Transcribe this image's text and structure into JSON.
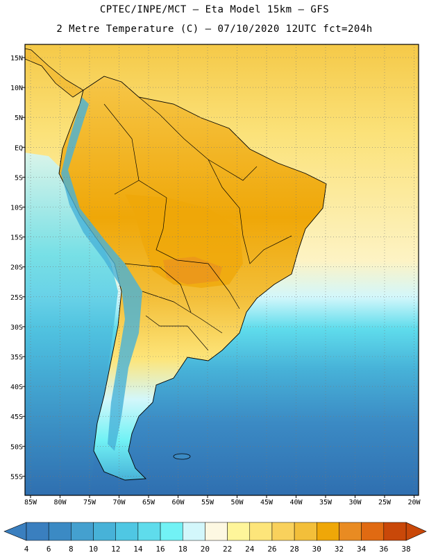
{
  "header": {
    "line1": "CPTEC/INPE/MCT –  Eta Model 15km – GFS",
    "line2": "2 Metre Temperature (C) – 07/10/2020 12UTC fct=204h"
  },
  "map": {
    "lat_ticks": [
      "15N",
      "10N",
      "5N",
      "EQ",
      "5S",
      "10S",
      "15S",
      "20S",
      "25S",
      "30S",
      "35S",
      "40S",
      "45S",
      "50S",
      "55S"
    ],
    "lon_ticks": [
      "85W",
      "80W",
      "75W",
      "70W",
      "65W",
      "60W",
      "55W",
      "50W",
      "45W",
      "40W",
      "35W",
      "30W",
      "25W",
      "20W"
    ]
  },
  "colorbar": {
    "labels": [
      "4",
      "6",
      "8",
      "10",
      "12",
      "14",
      "16",
      "18",
      "20",
      "22",
      "24",
      "26",
      "28",
      "30",
      "32",
      "34",
      "36",
      "38"
    ],
    "colors": [
      "#3a7fbf",
      "#3b8ac4",
      "#44a0cf",
      "#47b2d8",
      "#4fc7e3",
      "#5fdcec",
      "#72f2f5",
      "#d3f7fb",
      "#fdf8e2",
      "#fef59a",
      "#fde57a",
      "#f9d15c",
      "#f3bf3a",
      "#efa708",
      "#e98b22",
      "#e06a12",
      "#c94809"
    ],
    "left_arrow_color": "#3a7fbf",
    "right_arrow_color": "#c94809"
  },
  "palette": {
    "ocean_north": "#fbe27a",
    "ocean_south": "#2f6fb0",
    "land_warm": "#f3bf3a",
    "land_hot": "#efa708",
    "andes_cold": "#47b2d8"
  }
}
